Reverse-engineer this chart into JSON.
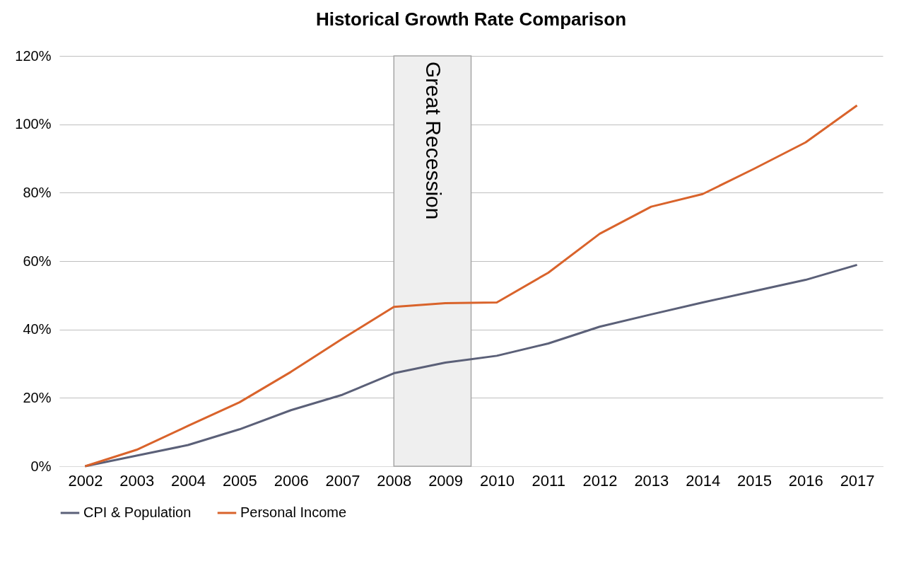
{
  "chart_data": {
    "type": "line",
    "title": "Historical Growth Rate Comparison",
    "x": [
      2002,
      2003,
      2004,
      2005,
      2006,
      2007,
      2008,
      2009,
      2010,
      2011,
      2012,
      2013,
      2014,
      2015,
      2016,
      2017
    ],
    "series": [
      {
        "name": "CPI & Population",
        "color": "#5b6078",
        "values": [
          0,
          3.1,
          6.2,
          10.8,
          16.4,
          20.9,
          27.2,
          30.3,
          32.3,
          35.9,
          40.8,
          44.4,
          47.9,
          51.2,
          54.5,
          58.9
        ]
      },
      {
        "name": "Personal Income",
        "color": "#d9632b",
        "values": [
          0,
          4.8,
          11.8,
          18.7,
          27.6,
          37.3,
          46.6,
          47.7,
          47.9,
          56.6,
          68.0,
          75.9,
          79.6,
          87.0,
          94.7,
          105.5
        ]
      }
    ],
    "xlim": [
      2001.5,
      2017.5
    ],
    "xticks": [
      2002,
      2003,
      2004,
      2005,
      2006,
      2007,
      2008,
      2009,
      2010,
      2011,
      2012,
      2013,
      2014,
      2015,
      2016,
      2017
    ],
    "ylim": [
      0,
      120
    ],
    "yticks": [
      {
        "value": 0,
        "label": "0%"
      },
      {
        "value": 20,
        "label": "20%"
      },
      {
        "value": 40,
        "label": "40%"
      },
      {
        "value": 60,
        "label": "60%"
      },
      {
        "value": 80,
        "label": "80%"
      },
      {
        "value": 100,
        "label": "100%"
      },
      {
        "value": 120,
        "label": "120%"
      }
    ],
    "bands": [
      {
        "axis": "x",
        "from": 2008,
        "to": 2009.5,
        "label": "Great Recession",
        "color": "#efefef"
      }
    ],
    "grid": "y",
    "legend": "bottom",
    "line_style": "solid",
    "marker": "none"
  }
}
